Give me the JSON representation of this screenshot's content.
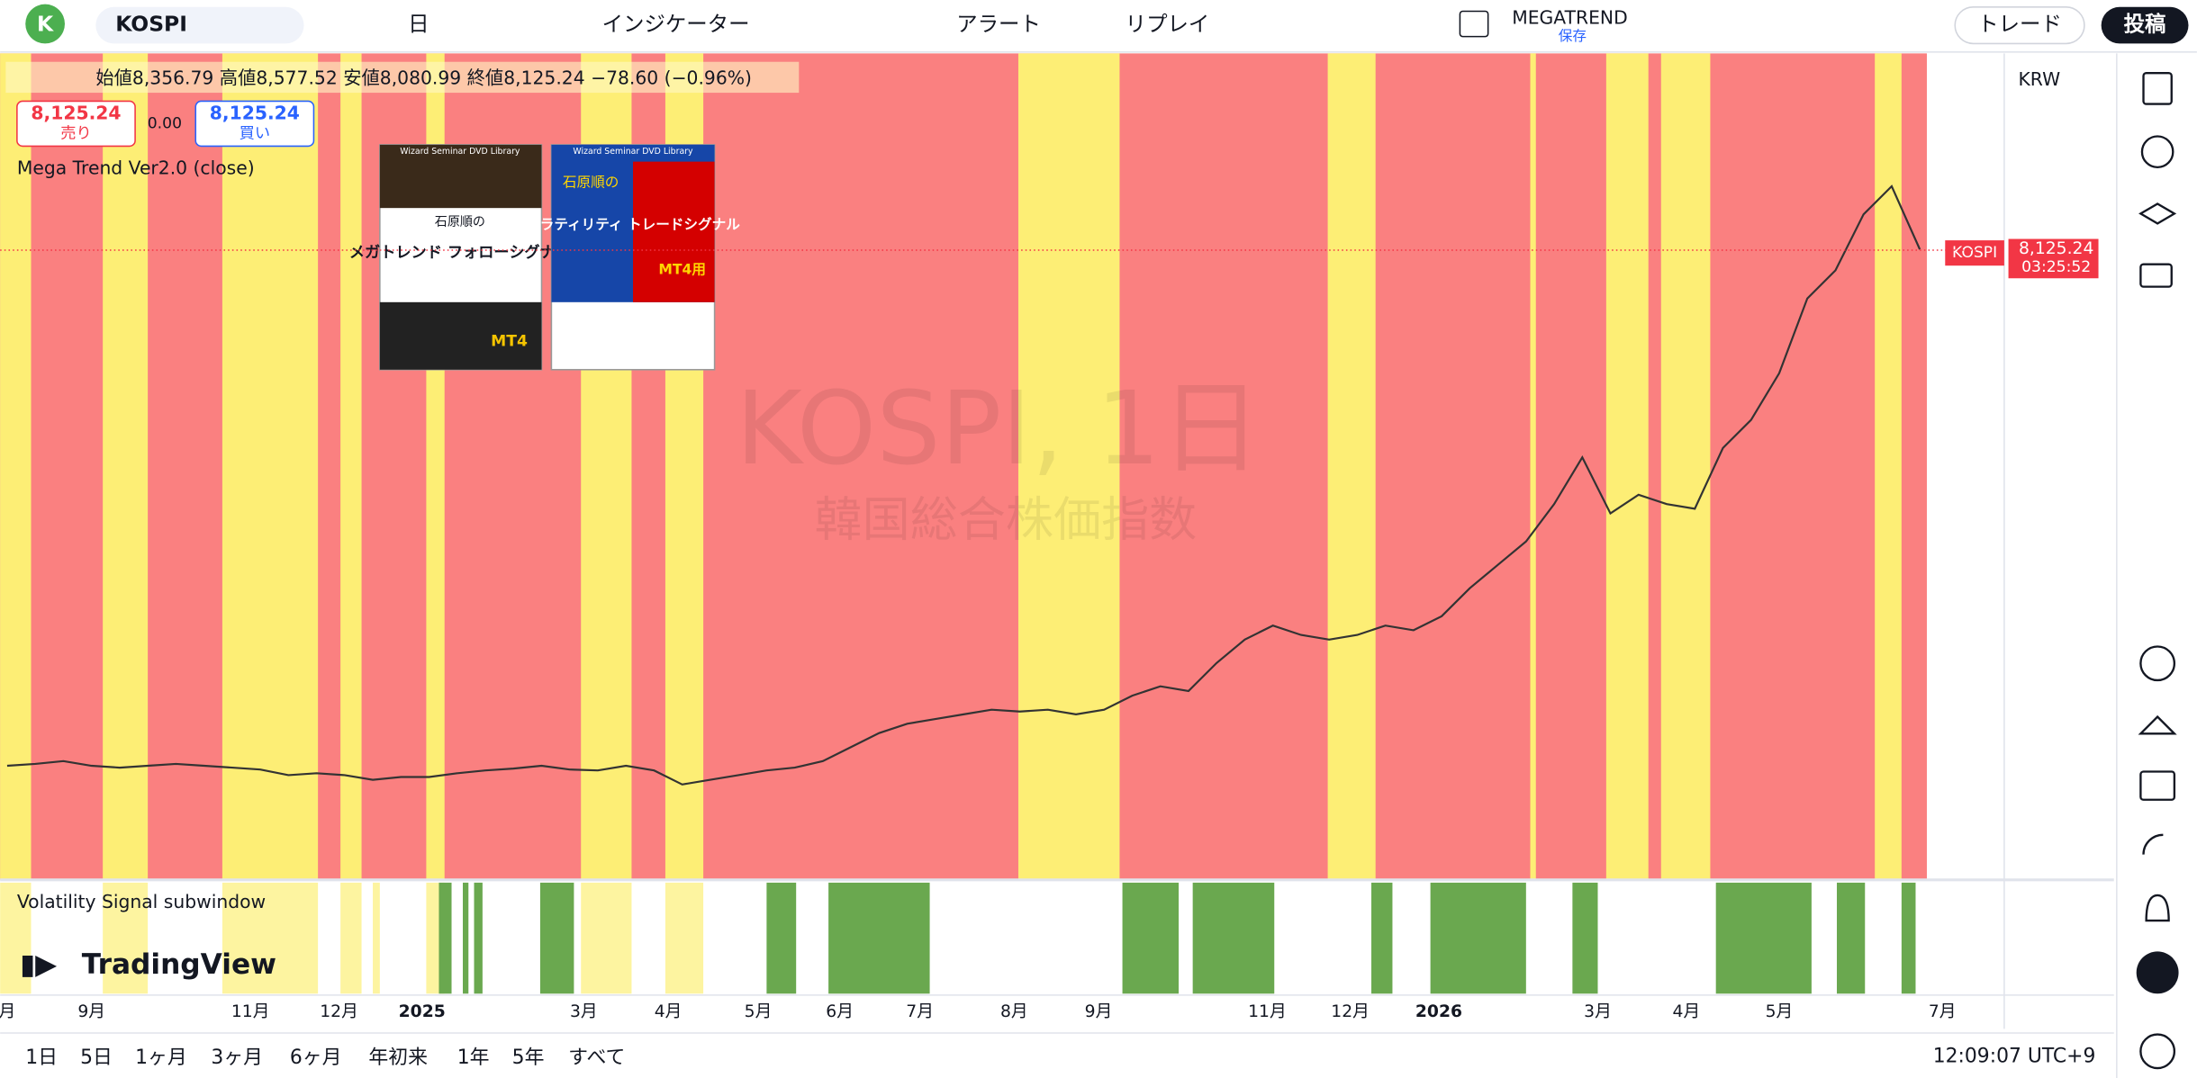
{
  "toolbar": {
    "avatar": "K",
    "symbol": "KOSPI",
    "interval": "日",
    "indicators": "インジケーター",
    "alert": "アラート",
    "replay": "リプレイ",
    "layout_name": "MEGATREND",
    "layout_status": "保存",
    "trade": "トレード",
    "publish": "投稿"
  },
  "legend": {
    "ohlc": "始値8,356.79 高値8,577.52 安値8,080.99 終値8,125.24 −78.60 (−0.96%)",
    "sell_price": "8,125.24",
    "sell": "売り",
    "spread": "0.00",
    "buy_price": "8,125.24",
    "buy": "買い",
    "indicator": "Mega Trend Ver2.0 (close)"
  },
  "watermark": {
    "title": "KOSPI, 1日",
    "subtitle": "韓国総合株価指数"
  },
  "books": [
    {
      "series": "Wizard Seminar DVD Library",
      "author": "石原順の",
      "title": "メガトレンド フォローシグナル",
      "badge": "MT4"
    },
    {
      "series": "Wizard Seminar DVD Library",
      "author": "石原順の",
      "title": "ボラティリティ トレードシグナル",
      "badge": "MT4用"
    }
  ],
  "price_axis": {
    "currency": "KRW",
    "tag_symbol": "KOSPI",
    "tag_price": "8,125.24",
    "tag_timer": "03:25:52"
  },
  "subwindow": {
    "label": "Volatility Signal subwindow",
    "logo": "TradingView"
  },
  "time_axis": [
    "月",
    "9月",
    "11月",
    "12月",
    "2025",
    "3月",
    "4月",
    "5月",
    "6月",
    "7月",
    "8月",
    "9月",
    "11月",
    "12月",
    "2026",
    "3月",
    "4月",
    "5月",
    "7月"
  ],
  "bottom": {
    "ranges": [
      "1日",
      "5日",
      "1ヶ月",
      "3ヶ月",
      "6ヶ月",
      "年初来",
      "1年",
      "5年",
      "すべて"
    ],
    "clock": "12:09:07 UTC+9"
  },
  "chart_data": {
    "type": "line",
    "color": "#333333",
    "values": [
      2600,
      2620,
      2650,
      2600,
      2580,
      2600,
      2620,
      2600,
      2580,
      2560,
      2500,
      2520,
      2500,
      2450,
      2480,
      2480,
      2520,
      2550,
      2570,
      2600,
      2560,
      2550,
      2600,
      2550,
      2400,
      2450,
      2500,
      2550,
      2580,
      2650,
      2800,
      2950,
      3050,
      3100,
      3150,
      3200,
      3180,
      3200,
      3150,
      3200,
      3350,
      3450,
      3400,
      3700,
      3950,
      4100,
      4000,
      3950,
      4000,
      4100,
      4050,
      4200,
      4500,
      4750,
      5000,
      5400,
      5900,
      5300,
      5500,
      5400,
      5350,
      6000,
      6300,
      6800,
      7600,
      7900,
      8500,
      8800,
      8125.24
    ],
    "ylim": [
      1500,
      9500
    ],
    "yticks": [
      {
        "value": 1500,
        "label": "1,500.00"
      },
      {
        "value": 2000,
        "label": "2,000.00"
      },
      {
        "value": 2500,
        "label": "2,500.00"
      },
      {
        "value": 3000,
        "label": "3,000.00"
      },
      {
        "value": 3500,
        "label": "3,500.00"
      },
      {
        "value": 4000,
        "label": "4,000.00"
      },
      {
        "value": 4500,
        "label": "4,500.00"
      },
      {
        "value": 5000,
        "label": "5,000.00"
      },
      {
        "value": 5500,
        "label": "5,500.00"
      },
      {
        "value": 6000,
        "label": "6,000.00"
      },
      {
        "value": 6500,
        "label": "6,500.00"
      },
      {
        "value": 7000,
        "label": "7,000.00"
      },
      {
        "value": 7500,
        "label": "7,500.00"
      },
      {
        "value": 8000,
        "label": "8,000.00"
      },
      {
        "value": 8500,
        "label": "8,500.00"
      },
      {
        "value": 9000,
        "label": "9,000.00"
      },
      {
        "value": 9500,
        "label": "9,500.00"
      }
    ]
  }
}
